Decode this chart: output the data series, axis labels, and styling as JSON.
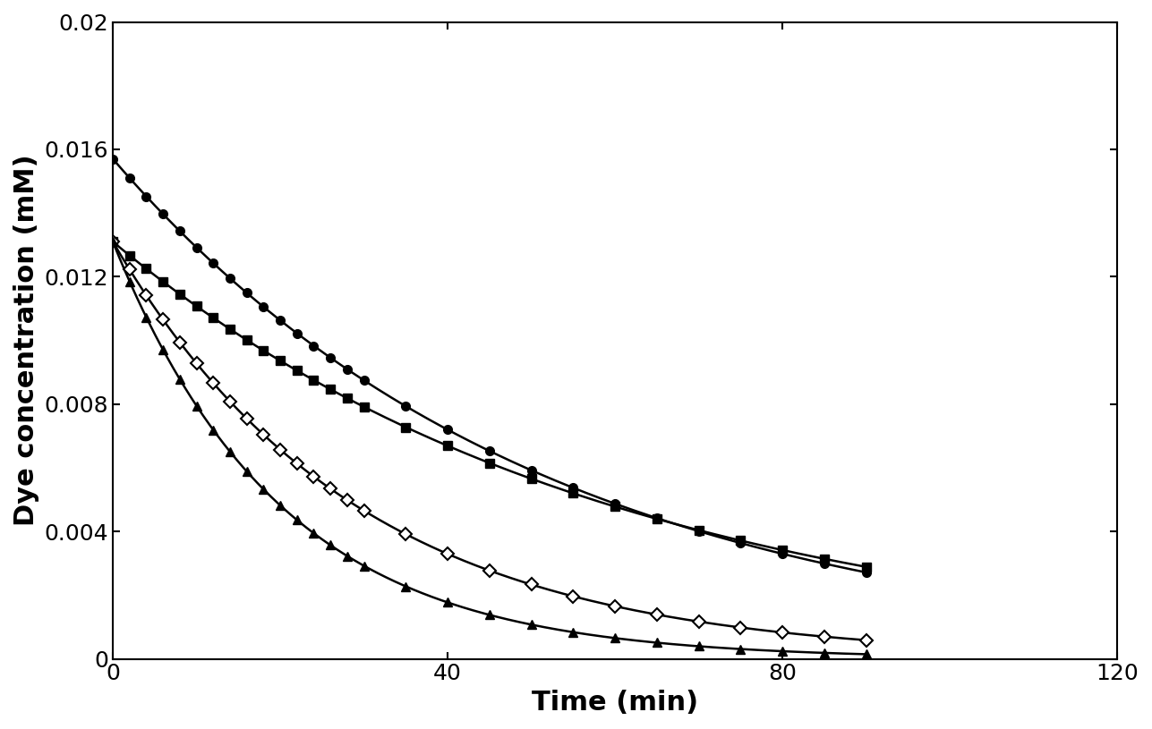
{
  "title": "",
  "xlabel": "Time (min)",
  "ylabel": "Dye concentration (mM)",
  "xlim": [
    0,
    120
  ],
  "ylim": [
    0,
    0.02
  ],
  "xticks": [
    0,
    40,
    80,
    120
  ],
  "yticks": [
    0,
    0.004,
    0.008,
    0.012,
    0.016,
    0.02
  ],
  "CV_C0": 0.0131,
  "CV_k": 0.0168,
  "Rb_C0": 0.0157,
  "Rb_k": 0.0195,
  "MG_C0": 0.0131,
  "MG_k": 0.0345,
  "MB_C0": 0.0131,
  "MB_k": 0.05,
  "background_color": "#ffffff",
  "linewidth": 1.8,
  "markersize": 7
}
